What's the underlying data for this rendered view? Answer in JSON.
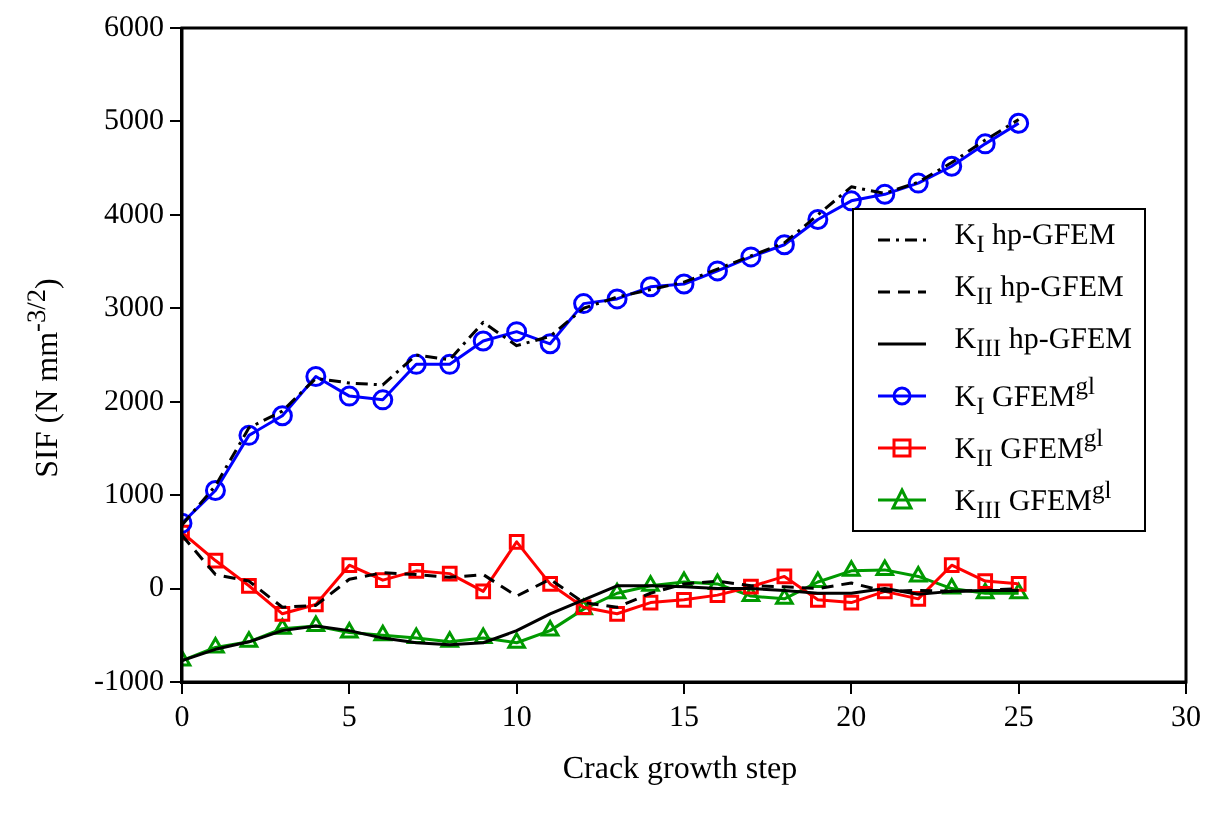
{
  "chart_data": {
    "type": "line",
    "xlabel": "Crack growth step",
    "ylabel": "SIF (N mm$^{-3/2}$)",
    "x": [
      0,
      1,
      2,
      3,
      4,
      5,
      6,
      7,
      8,
      9,
      10,
      11,
      12,
      13,
      14,
      15,
      16,
      17,
      18,
      19,
      20,
      21,
      22,
      23,
      24,
      25
    ],
    "xlim": [
      0,
      30
    ],
    "xticks": [
      0,
      5,
      10,
      15,
      20,
      25,
      30
    ],
    "ylim": [
      -1000,
      6000
    ],
    "yticks": [
      -1000,
      0,
      1000,
      2000,
      3000,
      4000,
      5000,
      6000
    ],
    "grid": false,
    "legend": "right",
    "series": [
      {
        "name": "K$_{I}$ hp-GFEM",
        "color": "#000000",
        "line_style": "dashdot",
        "marker": "none",
        "values": [
          680,
          1100,
          1720,
          1900,
          2250,
          2200,
          2180,
          2500,
          2450,
          2850,
          2600,
          2700,
          3000,
          3120,
          3200,
          3280,
          3420,
          3560,
          3700,
          4000,
          4300,
          4230,
          4350,
          4560,
          4800,
          5020
        ]
      },
      {
        "name": "K$_{II}$ hp-GFEM",
        "color": "#000000",
        "line_style": "dashed",
        "marker": "none",
        "values": [
          570,
          150,
          80,
          -200,
          -180,
          100,
          170,
          150,
          120,
          150,
          -80,
          100,
          -150,
          -200,
          -50,
          50,
          80,
          30,
          20,
          0,
          60,
          -30,
          -20,
          -30,
          -20,
          0
        ]
      },
      {
        "name": "K$_{III}$ hp-GFEM",
        "color": "#000000",
        "line_style": "solid",
        "marker": "none",
        "values": [
          -770,
          -650,
          -570,
          -450,
          -400,
          -450,
          -530,
          -580,
          -600,
          -580,
          -450,
          -270,
          -120,
          30,
          30,
          20,
          0,
          0,
          -20,
          -50,
          -50,
          0,
          -60,
          -30,
          -20,
          -20
        ]
      },
      {
        "name": "K$_{I}$ GFEM$^{gl}$",
        "color": "#0000ff",
        "line_style": "solid",
        "marker": "circle",
        "values": [
          700,
          1050,
          1640,
          1850,
          2270,
          2060,
          2020,
          2400,
          2400,
          2650,
          2750,
          2620,
          3050,
          3100,
          3230,
          3260,
          3400,
          3550,
          3680,
          3950,
          4150,
          4220,
          4340,
          4520,
          4760,
          4980
        ]
      },
      {
        "name": "K$_{II}$ GFEM$^{gl}$",
        "color": "#ff0000",
        "line_style": "solid",
        "marker": "square",
        "values": [
          600,
          300,
          30,
          -270,
          -170,
          250,
          90,
          190,
          160,
          -30,
          500,
          50,
          -200,
          -270,
          -150,
          -120,
          -70,
          20,
          130,
          -120,
          -150,
          -30,
          -110,
          250,
          80,
          50
        ]
      },
      {
        "name": "K$_{III}$ GFEM$^{gl}$",
        "color": "#009900",
        "line_style": "solid",
        "marker": "triangle",
        "values": [
          -770,
          -630,
          -570,
          -430,
          -400,
          -470,
          -500,
          -530,
          -570,
          -530,
          -580,
          -450,
          -220,
          -50,
          30,
          70,
          50,
          -80,
          -110,
          70,
          190,
          200,
          130,
          0,
          -50,
          -50
        ]
      }
    ]
  }
}
